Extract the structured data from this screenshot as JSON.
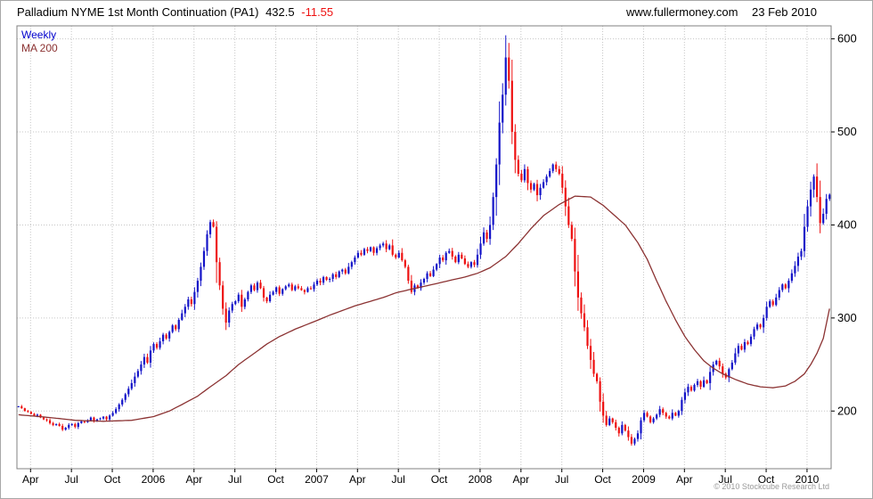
{
  "header": {
    "title_main": "Palladium NYME 1st Month Continuation (PA1)",
    "price": "432.5",
    "change": "-11.55",
    "website": "www.fullermoney.com",
    "date": "23 Feb 2010"
  },
  "legend": {
    "series1": "Weekly",
    "series2": "MA 200"
  },
  "footer": {
    "copyright": "© 2010 Stockcube Research Ltd"
  },
  "colors": {
    "up": "#1414c8",
    "down": "#ee1111",
    "ma": "#8b3232",
    "weekly_label": "#0000cc",
    "change": "#ee1111",
    "grid": "#c6c6c6",
    "frame": "#808080",
    "axis_text": "#000000",
    "copyright": "#9a9a9a"
  },
  "chart_data": {
    "type": "candlestick",
    "title": "Palladium NYME 1st Month Continuation (PA1)",
    "interval": "weekly",
    "overlay": "MA 200",
    "x_start": "Mar 2005",
    "x_end": "23 Feb 2010",
    "last_price": 432.5,
    "change": -11.55,
    "ylim": [
      138,
      614
    ],
    "yticks": [
      200,
      300,
      400,
      500,
      600
    ],
    "grid": "dotted",
    "legend_position": "top-left",
    "xticks": [
      {
        "label": "Apr",
        "month": 1
      },
      {
        "label": "Jul",
        "month": 4
      },
      {
        "label": "Oct",
        "month": 7
      },
      {
        "label": "2006",
        "month": 10
      },
      {
        "label": "Apr",
        "month": 13
      },
      {
        "label": "Jul",
        "month": 16
      },
      {
        "label": "Oct",
        "month": 19
      },
      {
        "label": "2007",
        "month": 22
      },
      {
        "label": "Apr",
        "month": 25
      },
      {
        "label": "Jul",
        "month": 28
      },
      {
        "label": "Oct",
        "month": 31
      },
      {
        "label": "2008",
        "month": 34
      },
      {
        "label": "Apr",
        "month": 37
      },
      {
        "label": "Jul",
        "month": 40
      },
      {
        "label": "Oct",
        "month": 43
      },
      {
        "label": "2009",
        "month": 46
      },
      {
        "label": "Apr",
        "month": 49
      },
      {
        "label": "Jul",
        "month": 52
      },
      {
        "label": "Oct",
        "month": 55
      },
      {
        "label": "2010",
        "month": 58
      }
    ],
    "closes": [
      205,
      203,
      200,
      199,
      197,
      195,
      196,
      193,
      191,
      190,
      187,
      185,
      186,
      184,
      180,
      182,
      185,
      186,
      183,
      187,
      189,
      188,
      190,
      193,
      189,
      191,
      192,
      194,
      191,
      195,
      198,
      202,
      207,
      212,
      218,
      224,
      230,
      237,
      243,
      250,
      258,
      252,
      265,
      272,
      268,
      275,
      282,
      278,
      285,
      292,
      288,
      298,
      305,
      312,
      320,
      315,
      328,
      340,
      355,
      372,
      390,
      403,
      398,
      360,
      335,
      310,
      295,
      308,
      315,
      318,
      325,
      312,
      320,
      328,
      335,
      330,
      338,
      332,
      322,
      318,
      325,
      328,
      333,
      326,
      331,
      334,
      336,
      330,
      334,
      332,
      330,
      328,
      332,
      331,
      336,
      340,
      338,
      344,
      341,
      342,
      347,
      344,
      350,
      352,
      348,
      355,
      360,
      365,
      370,
      368,
      374,
      372,
      376,
      370,
      375,
      378,
      380,
      374,
      378,
      368,
      365,
      370,
      362,
      355,
      340,
      328,
      335,
      332,
      338,
      342,
      348,
      345,
      352,
      358,
      365,
      362,
      370,
      372,
      366,
      360,
      368,
      364,
      358,
      355,
      360,
      357,
      368,
      380,
      392,
      385,
      400,
      430,
      465,
      510,
      540,
      580,
      555,
      500,
      470,
      455,
      448,
      460,
      445,
      438,
      444,
      432,
      440,
      446,
      452,
      458,
      465,
      460,
      455,
      440,
      420,
      400,
      385,
      350,
      322,
      305,
      290,
      270,
      255,
      240,
      232,
      210,
      195,
      185,
      192,
      188,
      182,
      176,
      185,
      179,
      172,
      165,
      170,
      176,
      190,
      198,
      194,
      188,
      192,
      196,
      202,
      198,
      194,
      192,
      198,
      195,
      200,
      212,
      220,
      226,
      222,
      228,
      232,
      226,
      233,
      230,
      242,
      250,
      254,
      248,
      240,
      236,
      245,
      252,
      262,
      270,
      266,
      274,
      272,
      280,
      288,
      293,
      290,
      300,
      312,
      318,
      314,
      322,
      330,
      336,
      332,
      340,
      348,
      356,
      366,
      372,
      398,
      420,
      438,
      452,
      430,
      402,
      412,
      428,
      432.5
    ],
    "ma200_anchors": [
      [
        0,
        196
      ],
      [
        10,
        193
      ],
      [
        18,
        190
      ],
      [
        27,
        189
      ],
      [
        36,
        190
      ],
      [
        43,
        194
      ],
      [
        48,
        200
      ],
      [
        52,
        207
      ],
      [
        57,
        216
      ],
      [
        61,
        226
      ],
      [
        66,
        238
      ],
      [
        70,
        250
      ],
      [
        75,
        262
      ],
      [
        79,
        272
      ],
      [
        83,
        280
      ],
      [
        88,
        288
      ],
      [
        94,
        296
      ],
      [
        99,
        303
      ],
      [
        103,
        308
      ],
      [
        107,
        313
      ],
      [
        112,
        318
      ],
      [
        116,
        322
      ],
      [
        120,
        327
      ],
      [
        125,
        331
      ],
      [
        129,
        334
      ],
      [
        133,
        337
      ],
      [
        138,
        341
      ],
      [
        142,
        344
      ],
      [
        146,
        348
      ],
      [
        150,
        354
      ],
      [
        155,
        366
      ],
      [
        159,
        380
      ],
      [
        163,
        396
      ],
      [
        167,
        410
      ],
      [
        172,
        422
      ],
      [
        177,
        431
      ],
      [
        182,
        430
      ],
      [
        186,
        421
      ],
      [
        190,
        409
      ],
      [
        193,
        400
      ],
      [
        197,
        381
      ],
      [
        200,
        363
      ],
      [
        203,
        340
      ],
      [
        206,
        318
      ],
      [
        209,
        298
      ],
      [
        212,
        280
      ],
      [
        215,
        266
      ],
      [
        218,
        254
      ],
      [
        221,
        246
      ],
      [
        224,
        240
      ],
      [
        228,
        234
      ],
      [
        232,
        229
      ],
      [
        236,
        226
      ],
      [
        240,
        225
      ],
      [
        244,
        227
      ],
      [
        247,
        232
      ],
      [
        250,
        240
      ],
      [
        252,
        250
      ],
      [
        254,
        262
      ],
      [
        256,
        278
      ],
      [
        258,
        310
      ]
    ]
  }
}
